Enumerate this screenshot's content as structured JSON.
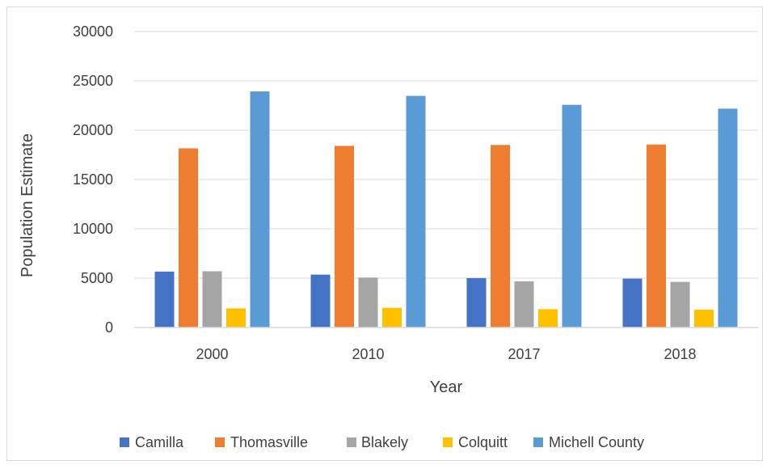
{
  "chart_data": {
    "type": "bar",
    "title": "",
    "xlabel": "Year",
    "ylabel": "Population Estimate",
    "categories": [
      "2000",
      "2010",
      "2017",
      "2018"
    ],
    "ylim": [
      0,
      30000
    ],
    "yticks": [
      0,
      5000,
      10000,
      15000,
      20000,
      25000,
      30000
    ],
    "grid": true,
    "legend_position": "bottom",
    "series": [
      {
        "name": "Camilla",
        "color": "#4472C4",
        "values": [
          5670,
          5360,
          5010,
          4950
        ]
      },
      {
        "name": "Thomasville",
        "color": "#ED7D31",
        "values": [
          18160,
          18410,
          18500,
          18550
        ]
      },
      {
        "name": "Blakely",
        "color": "#A5A5A5",
        "values": [
          5700,
          5060,
          4680,
          4620
        ]
      },
      {
        "name": "Colquitt",
        "color": "#FFC000",
        "values": [
          1940,
          1990,
          1860,
          1810
        ]
      },
      {
        "name": "Michell County",
        "color": "#5B9BD5",
        "values": [
          23930,
          23480,
          22570,
          22180
        ]
      }
    ]
  }
}
